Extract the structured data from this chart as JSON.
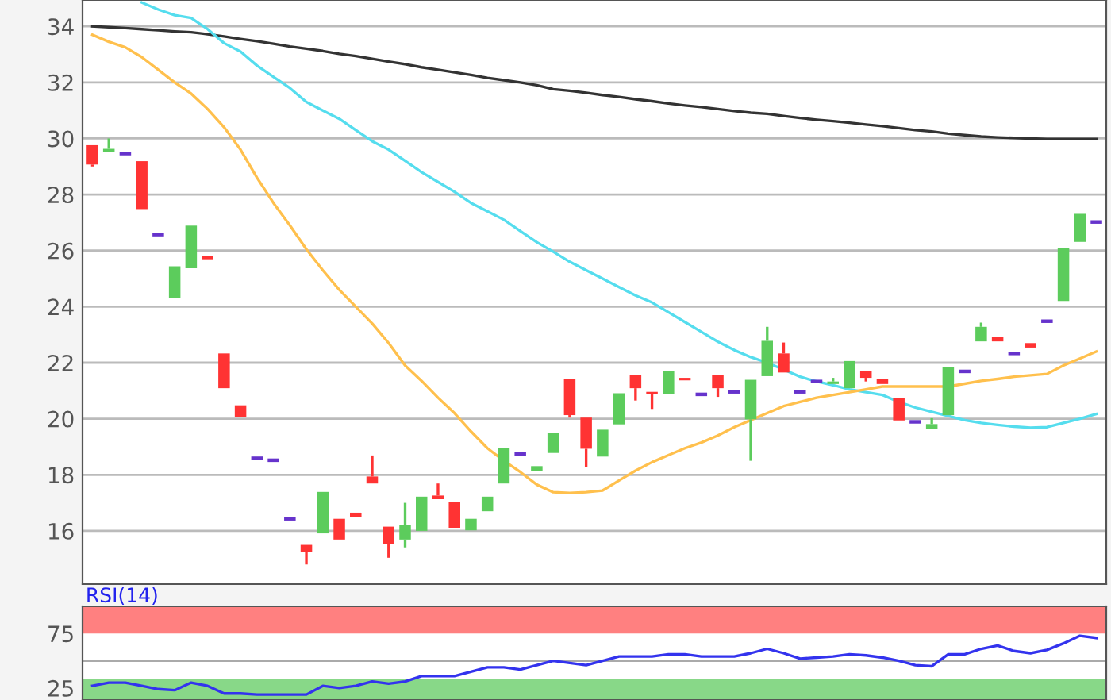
{
  "chart_data": [
    {
      "type": "candlestick",
      "categories": [
        null,
        null,
        null,
        null,
        null,
        null,
        null,
        null,
        null,
        null,
        null,
        null,
        null,
        null,
        null,
        null,
        null,
        null,
        null,
        null,
        null,
        null,
        null,
        null,
        null,
        null,
        null,
        null,
        null,
        null,
        null,
        null,
        null,
        null,
        null,
        null,
        null,
        null,
        null,
        null,
        null,
        null,
        null,
        null,
        null,
        null,
        null,
        null,
        null,
        null,
        null,
        null,
        null,
        null,
        null,
        null,
        null,
        null,
        null,
        null,
        null,
        null
      ],
      "ohlc": [
        [
          29.76,
          29.76,
          29.0,
          29.07
        ],
        [
          29.52,
          30.0,
          29.52,
          29.63
        ],
        [
          29.46,
          29.46,
          29.46,
          29.46
        ],
        [
          29.19,
          29.19,
          27.48,
          27.48
        ],
        [
          26.57,
          26.57,
          26.57,
          26.57
        ],
        [
          24.3,
          25.44,
          24.3,
          25.44
        ],
        [
          25.37,
          26.89,
          25.37,
          26.89
        ],
        [
          25.81,
          25.81,
          25.69,
          25.69
        ],
        [
          22.33,
          22.33,
          21.09,
          21.09
        ],
        [
          20.48,
          20.48,
          20.07,
          20.07
        ],
        [
          18.59,
          18.59,
          18.59,
          18.59
        ],
        [
          18.52,
          18.52,
          18.52,
          18.52
        ],
        [
          16.43,
          16.43,
          16.43,
          16.43
        ],
        [
          15.5,
          15.5,
          14.8,
          15.26
        ],
        [
          15.91,
          17.39,
          15.91,
          17.39
        ],
        [
          16.43,
          16.43,
          15.69,
          15.69
        ],
        [
          16.65,
          16.65,
          16.48,
          16.48
        ],
        [
          17.94,
          18.69,
          17.69,
          17.69
        ],
        [
          16.15,
          16.15,
          15.04,
          15.54
        ],
        [
          15.69,
          17.0,
          15.41,
          16.2
        ],
        [
          16.0,
          17.22,
          16.0,
          17.22
        ],
        [
          17.26,
          17.69,
          17.13,
          17.13
        ],
        [
          17.02,
          17.02,
          16.11,
          16.11
        ],
        [
          16.02,
          16.43,
          16.02,
          16.43
        ],
        [
          16.7,
          17.22,
          16.7,
          17.22
        ],
        [
          17.69,
          18.96,
          17.69,
          18.96
        ],
        [
          18.74,
          18.74,
          18.74,
          18.74
        ],
        [
          18.13,
          18.31,
          18.13,
          18.31
        ],
        [
          18.78,
          19.48,
          18.78,
          19.48
        ],
        [
          21.43,
          21.43,
          20.04,
          20.13
        ],
        [
          20.04,
          20.04,
          18.28,
          18.93
        ],
        [
          18.65,
          19.61,
          18.65,
          19.61
        ],
        [
          19.8,
          20.91,
          19.8,
          20.91
        ],
        [
          21.56,
          21.56,
          20.65,
          21.09
        ],
        [
          20.96,
          20.96,
          20.35,
          20.87
        ],
        [
          20.87,
          21.7,
          20.87,
          21.7
        ],
        [
          21.46,
          21.46,
          21.37,
          21.37
        ],
        [
          20.87,
          20.87,
          20.87,
          20.87
        ],
        [
          21.56,
          21.56,
          20.78,
          21.09
        ],
        [
          20.96,
          20.96,
          20.96,
          20.96
        ],
        [
          19.98,
          21.39,
          18.5,
          21.39
        ],
        [
          21.52,
          23.28,
          21.52,
          22.78
        ],
        [
          22.33,
          22.72,
          21.65,
          21.65
        ],
        [
          20.96,
          20.96,
          20.96,
          20.96
        ],
        [
          21.33,
          21.33,
          21.33,
          21.33
        ],
        [
          21.24,
          21.46,
          21.24,
          21.33
        ],
        [
          21.09,
          22.06,
          21.09,
          22.06
        ],
        [
          21.69,
          21.69,
          21.33,
          21.46
        ],
        [
          21.41,
          21.41,
          21.24,
          21.24
        ],
        [
          20.74,
          20.74,
          19.94,
          19.94
        ],
        [
          19.89,
          19.89,
          19.89,
          19.89
        ],
        [
          19.65,
          20.02,
          19.65,
          19.81
        ],
        [
          20.13,
          21.83,
          20.13,
          21.83
        ],
        [
          21.69,
          21.69,
          21.69,
          21.69
        ],
        [
          22.76,
          23.43,
          22.76,
          23.28
        ],
        [
          22.91,
          22.91,
          22.76,
          22.76
        ],
        [
          22.33,
          22.33,
          22.33,
          22.33
        ],
        [
          22.7,
          22.7,
          22.54,
          22.54
        ],
        [
          23.48,
          23.48,
          23.48,
          23.48
        ],
        [
          24.2,
          26.09,
          24.2,
          26.09
        ],
        [
          26.31,
          27.31,
          26.31,
          27.31
        ],
        [
          27.02,
          27.02,
          27.02,
          27.02
        ]
      ],
      "colors": [
        "#ff3333",
        "#5ccc5c",
        "#6633cc",
        "#ff3333",
        "#6633cc",
        "#5ccc5c",
        "#5ccc5c",
        "#ff3333",
        "#ff3333",
        "#ff3333",
        "#6633cc",
        "#6633cc",
        "#6633cc",
        "#ff3333",
        "#5ccc5c",
        "#ff3333",
        "#ff3333",
        "#ff3333",
        "#ff3333",
        "#5ccc5c",
        "#5ccc5c",
        "#ff3333",
        "#ff3333",
        "#5ccc5c",
        "#5ccc5c",
        "#5ccc5c",
        "#6633cc",
        "#5ccc5c",
        "#5ccc5c",
        "#ff3333",
        "#ff3333",
        "#5ccc5c",
        "#5ccc5c",
        "#ff3333",
        "#ff3333",
        "#5ccc5c",
        "#ff3333",
        "#6633cc",
        "#ff3333",
        "#6633cc",
        "#5ccc5c",
        "#5ccc5c",
        "#ff3333",
        "#6633cc",
        "#6633cc",
        "#5ccc5c",
        "#5ccc5c",
        "#ff3333",
        "#ff3333",
        "#ff3333",
        "#6633cc",
        "#5ccc5c",
        "#5ccc5c",
        "#6633cc",
        "#5ccc5c",
        "#ff3333",
        "#6633cc",
        "#ff3333",
        "#6633cc",
        "#5ccc5c",
        "#5ccc5c",
        "#6633cc"
      ],
      "series": [
        {
          "type": "line",
          "color": "#333333",
          "values": [
            34.0,
            33.97,
            33.94,
            33.9,
            33.86,
            33.82,
            33.79,
            33.72,
            33.64,
            33.55,
            33.47,
            33.38,
            33.28,
            33.2,
            33.12,
            33.02,
            32.94,
            32.84,
            32.74,
            32.65,
            32.54,
            32.45,
            32.36,
            32.27,
            32.16,
            32.08,
            32.0,
            31.9,
            31.76,
            31.7,
            31.63,
            31.55,
            31.48,
            31.4,
            31.33,
            31.25,
            31.18,
            31.12,
            31.05,
            30.98,
            30.92,
            30.88,
            30.8,
            30.73,
            30.67,
            30.62,
            30.56,
            30.5,
            30.44,
            30.37,
            30.3,
            30.25,
            30.17,
            30.12,
            30.07,
            30.04,
            30.02,
            30.0,
            29.98,
            29.98,
            29.98,
            29.98
          ]
        },
        {
          "type": "line",
          "color": "#55ddee",
          "values": [
            null,
            null,
            null,
            34.85,
            34.6,
            34.4,
            34.3,
            33.9,
            33.4,
            33.1,
            32.6,
            32.2,
            31.8,
            31.3,
            31.0,
            30.7,
            30.3,
            29.9,
            29.6,
            29.2,
            28.8,
            28.45,
            28.1,
            27.7,
            27.4,
            27.1,
            26.7,
            26.3,
            25.96,
            25.6,
            25.3,
            25.0,
            24.7,
            24.4,
            24.15,
            23.8,
            23.45,
            23.1,
            22.75,
            22.45,
            22.2,
            22.0,
            21.75,
            21.5,
            21.33,
            21.2,
            21.05,
            20.95,
            20.85,
            20.6,
            20.4,
            20.25,
            20.1,
            19.95,
            19.85,
            19.78,
            19.72,
            19.68,
            19.7,
            19.85,
            20.0,
            20.17
          ]
        },
        {
          "type": "line",
          "color": "#ffc04d",
          "values": [
            33.7,
            33.45,
            33.25,
            32.9,
            32.45,
            32.0,
            31.6,
            31.05,
            30.4,
            29.6,
            28.6,
            27.7,
            26.9,
            26.05,
            25.3,
            24.6,
            24.0,
            23.4,
            22.7,
            21.9,
            21.35,
            20.75,
            20.2,
            19.55,
            18.95,
            18.5,
            18.1,
            17.65,
            17.38,
            17.35,
            17.38,
            17.44,
            17.8,
            18.15,
            18.45,
            18.7,
            18.95,
            19.15,
            19.4,
            19.7,
            19.95,
            20.2,
            20.45,
            20.6,
            20.75,
            20.85,
            20.95,
            21.05,
            21.15,
            21.15,
            21.15,
            21.15,
            21.15,
            21.25,
            21.35,
            21.42,
            21.5,
            21.55,
            21.6,
            21.9,
            22.15,
            22.4
          ]
        }
      ],
      "ylim": [
        14.1,
        34.94
      ],
      "yticks": [
        16,
        18,
        20,
        22,
        24,
        26,
        28,
        30,
        32,
        34
      ],
      "grid": "y",
      "tick_labels": "y"
    },
    {
      "type": "line",
      "title": "RSI(14)",
      "categories": [
        null,
        null,
        null,
        null,
        null,
        null,
        null,
        null,
        null,
        null,
        null,
        null,
        null,
        null,
        null,
        null,
        null,
        null,
        null,
        null,
        null,
        null,
        null,
        null,
        null,
        null,
        null,
        null,
        null,
        null,
        null,
        null,
        null,
        null,
        null,
        null,
        null,
        null,
        null,
        null,
        null,
        null,
        null,
        null,
        null,
        null,
        null,
        null,
        null,
        null,
        null,
        null,
        null,
        null,
        null,
        null,
        null,
        null,
        null,
        null,
        null,
        null
      ],
      "series": [
        {
          "color": "#3333ee",
          "values": [
            27,
            30,
            30,
            27,
            24,
            23,
            30,
            27,
            20,
            20,
            19,
            19,
            19,
            19,
            27,
            25,
            27,
            31,
            29,
            31,
            36,
            36,
            36,
            40,
            44,
            44,
            42,
            46,
            50,
            48,
            46,
            50,
            54,
            54,
            54,
            56,
            56,
            54,
            54,
            54,
            57,
            61,
            57,
            52,
            53,
            54,
            56,
            55,
            53,
            50,
            46,
            45,
            56,
            56,
            61,
            64,
            59,
            57,
            60,
            66,
            73,
            71
          ]
        }
      ],
      "bands": [
        {
          "axis": "y",
          "from": 75,
          "to": 100,
          "color": "#ff8080"
        },
        {
          "axis": "y",
          "from": 14,
          "to": 33,
          "color": "#88d888"
        }
      ],
      "ref_lines": [
        {
          "axis": "y",
          "value": 50,
          "color": "#aaaaaa"
        }
      ],
      "ylim": [
        14,
        100
      ],
      "yticks": [
        25,
        75
      ],
      "tick_labels": "y"
    }
  ]
}
